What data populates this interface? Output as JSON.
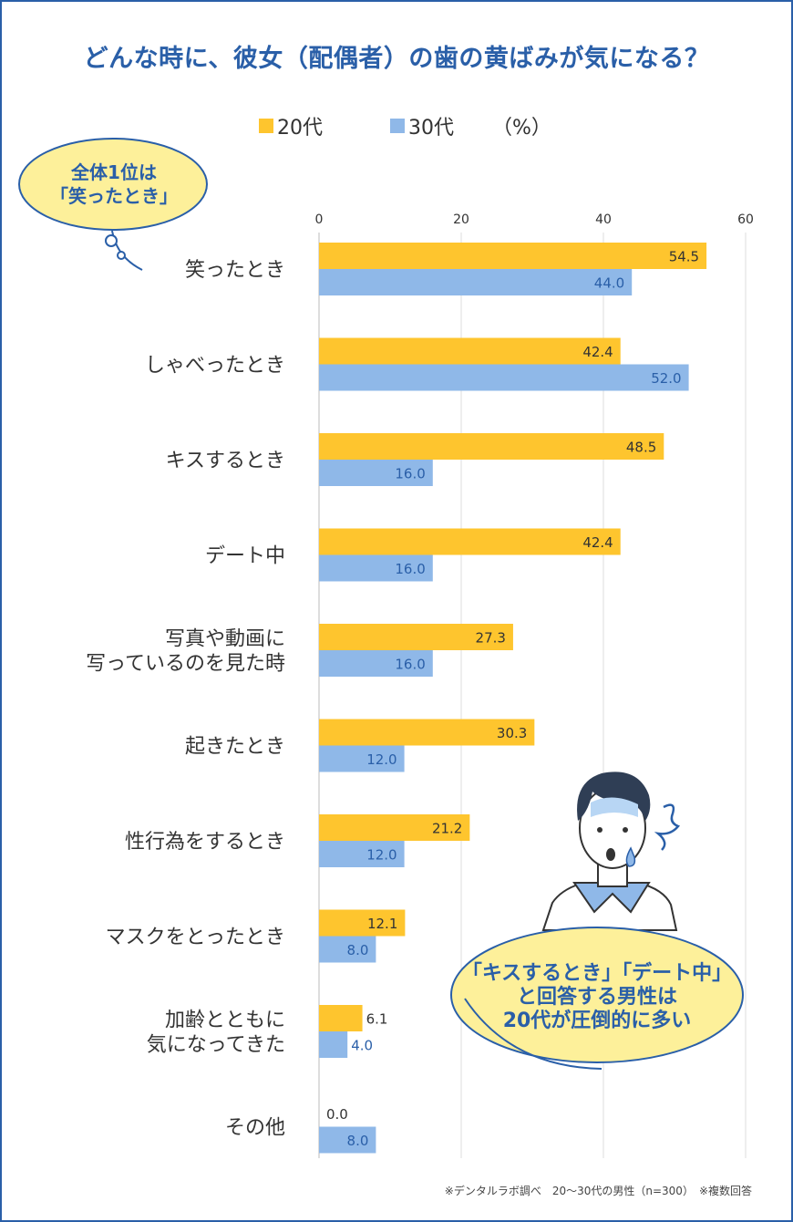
{
  "title": "どんな時に、彼女（配偶者）の歯の黄ばみが気になる？",
  "legend": {
    "series1": "20代",
    "series2": "30代",
    "unit": "（%）"
  },
  "callout_top": {
    "line1": "全体1位は",
    "line2": "「笑ったとき」"
  },
  "callout_bottom": {
    "line1": "「キスするとき」「デート中」",
    "line2": "と回答する男性は",
    "line3": "20代が圧倒的に多い"
  },
  "note": "※デンタルラボ調べ　20〜30代の男性（n=300）　※複数回答",
  "colors": {
    "accent": "#2a5fa8",
    "series1": "#fec52e",
    "series2": "#8fb8e8",
    "bubble": "#fdf09a"
  },
  "chart_data": {
    "type": "bar",
    "orientation": "horizontal",
    "categories": [
      [
        "笑ったとき"
      ],
      [
        "しゃべったとき"
      ],
      [
        "キスするとき"
      ],
      [
        "デート中"
      ],
      [
        "写真や動画に",
        "写っているのを見た時"
      ],
      [
        "起きたとき"
      ],
      [
        "性行為をするとき"
      ],
      [
        "マスクをとったとき"
      ],
      [
        "加齢とともに",
        "気になってきた"
      ],
      [
        "その他"
      ]
    ],
    "series": [
      {
        "name": "20代",
        "values": [
          54.5,
          42.4,
          48.5,
          42.4,
          27.3,
          30.3,
          21.2,
          12.1,
          6.1,
          0.0
        ],
        "labels": [
          "54.5",
          "42.4",
          "48.5",
          "42.4",
          "27.3",
          "30.3",
          "21.2",
          "12.1",
          "6.1",
          "0.0"
        ]
      },
      {
        "name": "30代",
        "values": [
          44.0,
          52.0,
          16.0,
          16.0,
          16.0,
          12.0,
          12.0,
          8.0,
          4.0,
          8.0
        ],
        "labels": [
          "44.0",
          "52.0",
          "16.0",
          "16.0",
          "16.0",
          "12.0",
          "12.0",
          "8.0",
          "4.0",
          "8.0"
        ]
      }
    ],
    "xlim": [
      0,
      60
    ],
    "ticks": [
      "0",
      "20",
      "40",
      "60"
    ],
    "grid": true
  }
}
